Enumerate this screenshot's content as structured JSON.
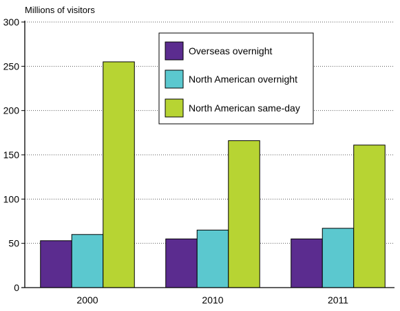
{
  "chart_data": {
    "type": "bar",
    "title": "",
    "ylabel": "Millions of visitors",
    "xlabel": "",
    "categories": [
      "2000",
      "2010",
      "2011"
    ],
    "series": [
      {
        "name": "Overseas overnight",
        "color": "#5b2c8f",
        "values": [
          53,
          55,
          55
        ]
      },
      {
        "name": "North American overnight",
        "color": "#5bc8cf",
        "values": [
          60,
          65,
          67
        ]
      },
      {
        "name": "North American same-day",
        "color": "#b7d433",
        "values": [
          255,
          166,
          161
        ]
      }
    ],
    "ylim": [
      0,
      300
    ],
    "yticks": [
      0,
      50,
      100,
      150,
      200,
      250,
      300
    ],
    "grid": "horizontal-dotted",
    "legend_position": "top-center-right"
  }
}
